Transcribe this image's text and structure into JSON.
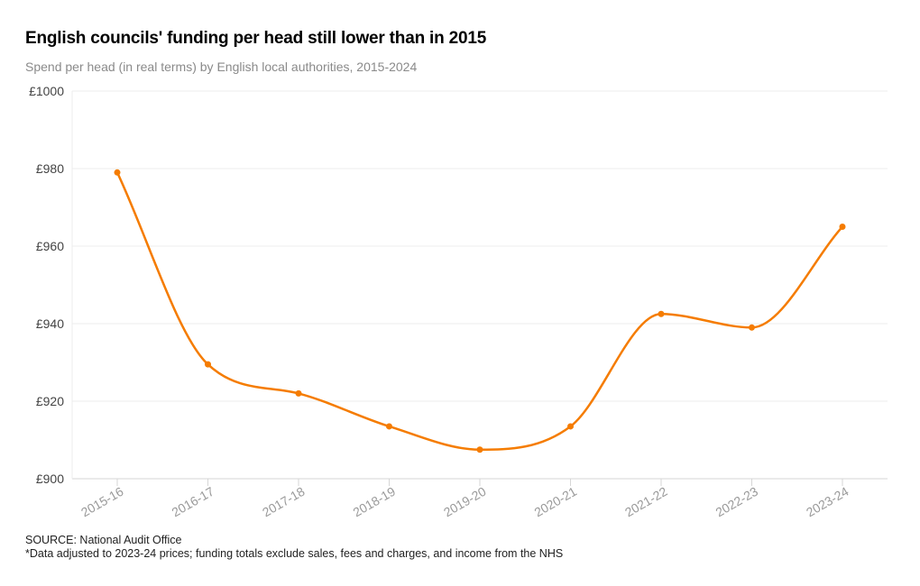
{
  "header": {
    "title": "English councils' funding per head still lower than in 2015",
    "subtitle": "Spend per head (in real terms) by English local authorities, 2015-2024"
  },
  "footer": {
    "source": "SOURCE: National Audit Office",
    "note": "*Data adjusted to 2023-24 prices; funding totals exclude sales, fees and charges, and income from the NHS"
  },
  "chart_data": {
    "type": "line",
    "title": "English councils' funding per head still lower than in 2015",
    "xlabel": "",
    "ylabel": "",
    "categories": [
      "2015-16",
      "2016-17",
      "2017-18",
      "2018-19",
      "2019-20",
      "2020-21",
      "2021-22",
      "2022-23",
      "2023-24"
    ],
    "series": [
      {
        "name": "Spend per head",
        "values": [
          979,
          929.5,
          922,
          913.5,
          907.5,
          913.5,
          942.5,
          939,
          965
        ]
      }
    ],
    "ylim": [
      900,
      1000
    ],
    "yticks": [
      900,
      920,
      940,
      960,
      980,
      1000
    ],
    "ytick_labels": [
      "£900",
      "£920",
      "£940",
      "£960",
      "£980",
      "£1000"
    ],
    "grid": true,
    "line_color": "#f57c00"
  }
}
